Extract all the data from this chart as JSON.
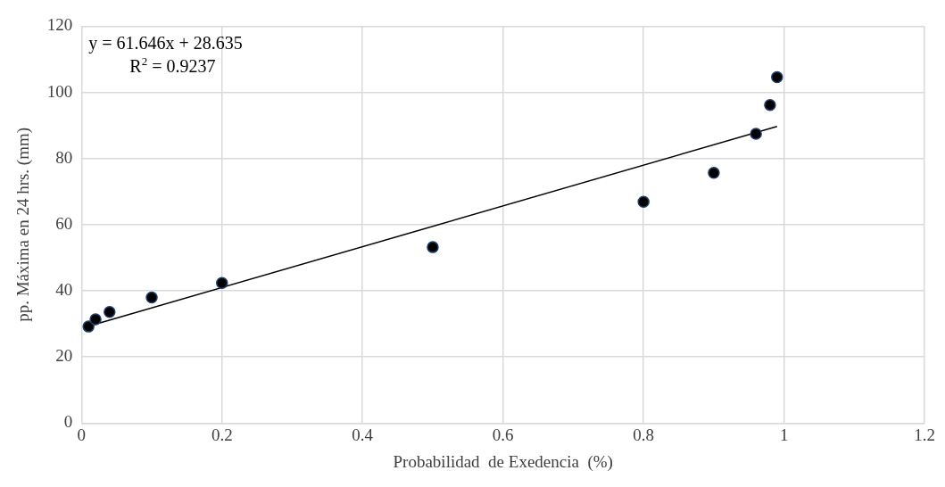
{
  "chart_data": {
    "type": "scatter",
    "xlabel": "Probabilidad  de Exedencia  (%)",
    "ylabel": "pp. Máxima en 24 hrs. (mm)",
    "annotations": [
      "y = 61.646x + 28.635",
      "R$^{2}$ = 0.9237"
    ],
    "series": [
      {
        "color": "#000000",
        "x": [
          0.01,
          0.02,
          0.04,
          0.1,
          0.2,
          0.5,
          0.8,
          0.9,
          0.96,
          0.98,
          0.99
        ],
        "values": [
          29.2,
          31.4,
          33.6,
          38.0,
          42.4,
          53.2,
          66.9,
          75.7,
          87.5,
          96.2,
          104.6
        ],
        "marker": "circle"
      },
      {
        "type": "line",
        "color": "#000000",
        "x": [
          0.01,
          0.99
        ],
        "values": [
          29.3,
          89.7
        ],
        "marker": "none"
      }
    ],
    "xlim": [
      0,
      1.2
    ],
    "xticks": [
      0,
      0.2,
      0.4,
      0.6,
      0.8,
      1,
      1.2
    ],
    "ylim": [
      0,
      120
    ],
    "yticks": [
      0,
      20,
      40,
      60,
      80,
      100,
      120
    ],
    "grid": true,
    "legend": false
  }
}
